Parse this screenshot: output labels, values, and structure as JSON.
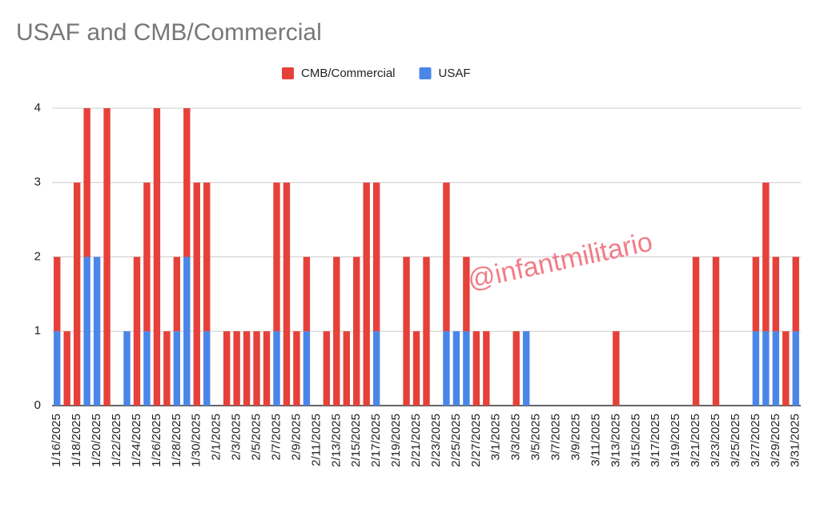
{
  "chart_data": {
    "type": "stacked-bar",
    "title": "USAF and CMB/Commercial",
    "watermark": "@infantmilitario",
    "categories": [
      "1/16/2025",
      null,
      "1/18/2025",
      null,
      "1/20/2025",
      null,
      "1/22/2025",
      null,
      "1/24/2025",
      null,
      "1/26/2025",
      null,
      "1/28/2025",
      null,
      "1/30/2025",
      null,
      "2/1/2025",
      null,
      "2/3/2025",
      null,
      "2/5/2025",
      null,
      "2/7/2025",
      null,
      "2/9/2025",
      null,
      "2/11/2025",
      null,
      "2/13/2025",
      null,
      "2/15/2025",
      null,
      "2/17/2025",
      null,
      "2/19/2025",
      null,
      "2/21/2025",
      null,
      "2/23/2025",
      null,
      "2/25/2025",
      null,
      "2/27/2025",
      null,
      "3/1/2025",
      null,
      "3/3/2025",
      null,
      "3/5/2025",
      null,
      "3/7/2025",
      null,
      "3/9/2025",
      null,
      "3/11/2025",
      null,
      "3/13/2025",
      null,
      "3/15/2025",
      null,
      "3/17/2025",
      null,
      "3/19/2025",
      null,
      "3/21/2025",
      null,
      "3/23/2025",
      null,
      "3/25/2025",
      null,
      "3/27/2025",
      null,
      "3/29/2025",
      null,
      "3/31/2025"
    ],
    "series": [
      {
        "name": "CMB/Commercial",
        "color": "#e5413a",
        "values": [
          1,
          1,
          3,
          2,
          0,
          4,
          0,
          0,
          2,
          2,
          4,
          1,
          1,
          2,
          3,
          2,
          0,
          1,
          1,
          1,
          1,
          1,
          2,
          3,
          1,
          1,
          0,
          1,
          2,
          1,
          2,
          3,
          2,
          0,
          0,
          2,
          1,
          2,
          0,
          2,
          0,
          1,
          1,
          1,
          0,
          0,
          1,
          0,
          0,
          0,
          0,
          0,
          0,
          0,
          0,
          0,
          1,
          0,
          0,
          0,
          0,
          0,
          0,
          0,
          2,
          0,
          2,
          0,
          0,
          0,
          1,
          2,
          1,
          1,
          1
        ]
      },
      {
        "name": "USAF",
        "color": "#4a86e8",
        "values": [
          1,
          0,
          0,
          2,
          2,
          0,
          0,
          1,
          0,
          1,
          0,
          0,
          1,
          2,
          0,
          1,
          0,
          0,
          0,
          0,
          0,
          0,
          1,
          0,
          0,
          1,
          0,
          0,
          0,
          0,
          0,
          0,
          1,
          0,
          0,
          0,
          0,
          0,
          0,
          1,
          1,
          1,
          0,
          0,
          0,
          0,
          0,
          1,
          0,
          0,
          0,
          0,
          0,
          0,
          0,
          0,
          0,
          0,
          0,
          0,
          0,
          0,
          0,
          0,
          0,
          0,
          0,
          0,
          0,
          0,
          1,
          1,
          1,
          0,
          1
        ]
      }
    ],
    "ylim": [
      0,
      4
    ],
    "yticks": [
      0,
      1,
      2,
      3,
      4
    ],
    "grid": true,
    "legend": "top"
  }
}
